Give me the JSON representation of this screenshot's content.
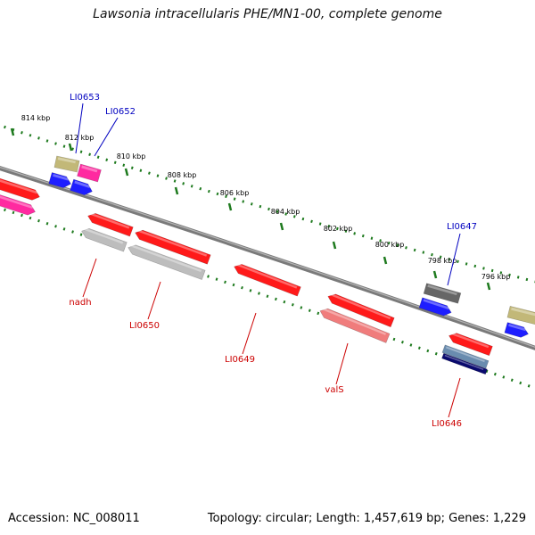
{
  "title": "Lawsonia intracellularis PHE/MN1-00, complete genome",
  "footer": {
    "accession": "Accession: NC_008011",
    "summary": "Topology: circular; Length: 1,457,619 bp; Genes: 1,229"
  },
  "colors": {
    "backbone": "#7a7a7a",
    "tick": "#1e7a1e",
    "label_forward": "#0000c0",
    "label_reverse": "#cc0000",
    "red": "#ff1a1a",
    "pink": "#ff2aa0",
    "olive": "#c2b878",
    "blue": "#1e1eff",
    "gray": "#bdbdbd",
    "darkgray": "#666666",
    "salmon": "#f07c7c",
    "navy": "#0a0a6e",
    "steel": "#6a8caf"
  },
  "ticks": [
    {
      "label": "814 kbp"
    },
    {
      "label": "812 kbp"
    },
    {
      "label": "810 kbp"
    },
    {
      "label": "808 kbp"
    },
    {
      "label": "806 kbp"
    },
    {
      "label": "804 kbp"
    },
    {
      "label": "802 kbp"
    },
    {
      "label": "800 kbp"
    },
    {
      "label": "798 kbp"
    },
    {
      "label": "796 kbp"
    }
  ],
  "gene_labels": {
    "forward": [
      "LI0653",
      "LI0652",
      "LI0647"
    ],
    "reverse": [
      "nadh",
      "LI0650",
      "LI0649",
      "valS",
      "LI0646"
    ]
  }
}
